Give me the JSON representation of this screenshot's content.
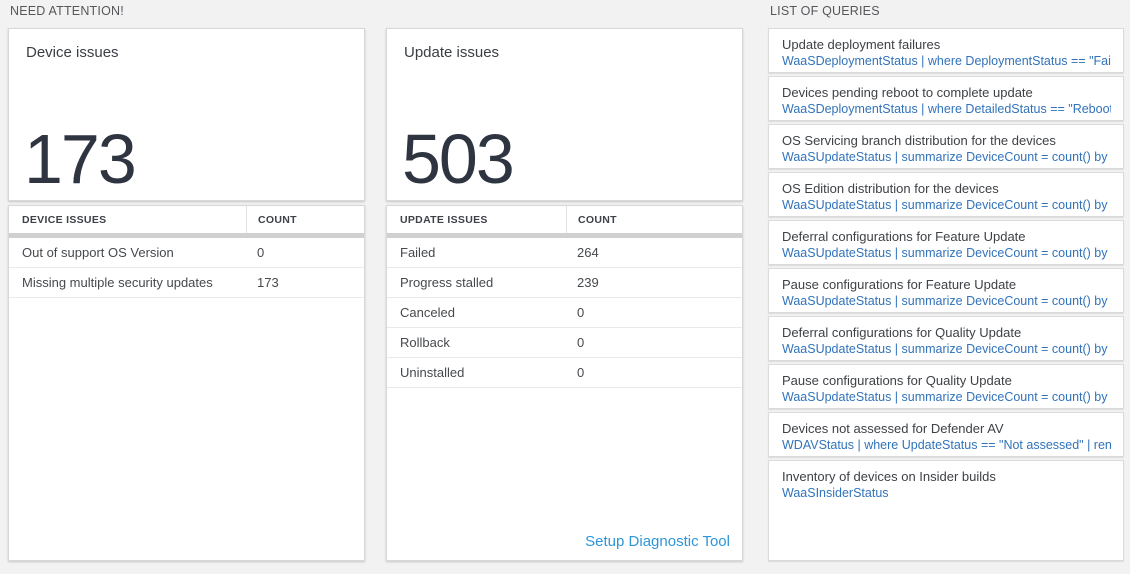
{
  "header": {
    "need_attention_label": "NEED ATTENTION!",
    "list_of_queries_label": "LIST OF QUERIES"
  },
  "device_issues": {
    "title": "Device issues",
    "total": "173",
    "table": {
      "headers": [
        "DEVICE ISSUES",
        "COUNT"
      ],
      "rows": [
        {
          "label": "Out of support OS Version",
          "count": "0"
        },
        {
          "label": "Missing multiple security updates",
          "count": "173"
        }
      ]
    }
  },
  "update_issues": {
    "title": "Update issues",
    "total": "503",
    "table": {
      "headers": [
        "UPDATE ISSUES",
        "COUNT"
      ],
      "rows": [
        {
          "label": "Failed",
          "count": "264"
        },
        {
          "label": "Progress stalled",
          "count": "239"
        },
        {
          "label": "Canceled",
          "count": "0"
        },
        {
          "label": "Rollback",
          "count": "0"
        },
        {
          "label": "Uninstalled",
          "count": "0"
        }
      ]
    },
    "footer_link": "Setup Diagnostic Tool"
  },
  "queries": [
    {
      "title": "Update deployment failures",
      "query": "WaaSDeploymentStatus | where DeploymentStatus == \"Failed\" |..."
    },
    {
      "title": "Devices pending reboot to complete update",
      "query": "WaaSDeploymentStatus | where DetailedStatus == \"Reboot pend..."
    },
    {
      "title": "OS Servicing branch distribution for the devices",
      "query": "WaaSUpdateStatus | summarize DeviceCount = count() by OSSer..."
    },
    {
      "title": "OS Edition distribution for the devices",
      "query": "WaaSUpdateStatus | summarize DeviceCount = count() by OSEdit..."
    },
    {
      "title": "Deferral configurations for Feature Update",
      "query": "WaaSUpdateStatus | summarize DeviceCount = count() by Featur..."
    },
    {
      "title": "Pause configurations for Feature Update",
      "query": "WaaSUpdateStatus | summarize DeviceCount = count() by Featur..."
    },
    {
      "title": "Deferral configurations for Quality Update",
      "query": "WaaSUpdateStatus | summarize DeviceCount = count() by Qualit..."
    },
    {
      "title": "Pause configurations for Quality Update",
      "query": "WaaSUpdateStatus | summarize DeviceCount = count() by Qualit..."
    },
    {
      "title": "Devices not assessed for Defender AV",
      "query": "WDAVStatus | where UpdateStatus == \"Not assessed\" | render ta..."
    },
    {
      "title": "Inventory of devices on Insider builds",
      "query": "WaaSInsiderStatus"
    }
  ],
  "colors": {
    "page_background": "#f2f2f2",
    "big_number": "#2e3440",
    "query_link": "#3173ba",
    "setup_link": "#2d96d9",
    "header_separator_bar": "#d0d0d0"
  }
}
